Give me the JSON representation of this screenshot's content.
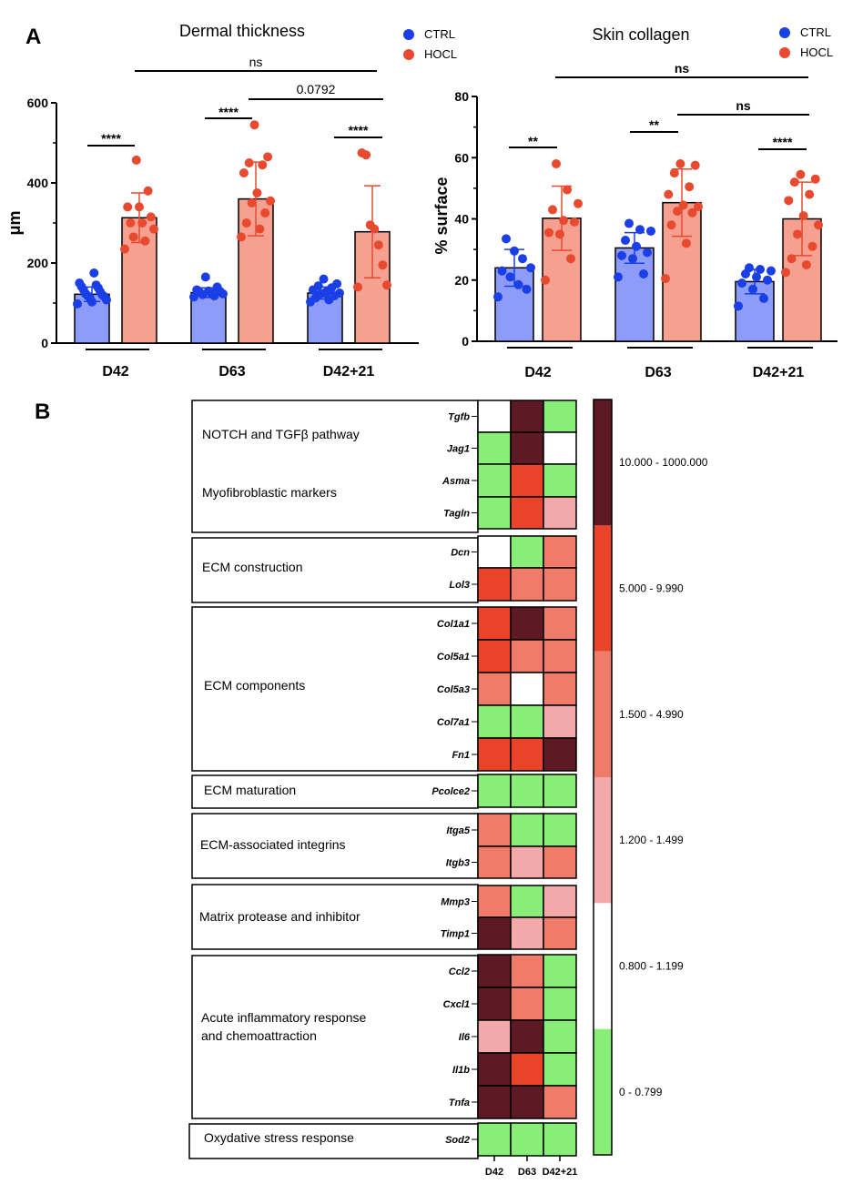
{
  "panels": {
    "a": "A",
    "b": "B"
  },
  "colors": {
    "ctrl_point": "#1a3fe6",
    "ctrl_bar": "#8c9cf8",
    "hocl_point": "#e84a30",
    "hocl_bar": "#f5a090"
  },
  "chart_data": [
    {
      "type": "bar",
      "title": "Dermal thickness",
      "ylabel": "μm",
      "ylim": [
        0,
        600
      ],
      "yticks": [
        0,
        200,
        400,
        600
      ],
      "categories": [
        "D42",
        "D63",
        "D42+21"
      ],
      "legend_position": "top-right",
      "series": [
        {
          "name": "CTRL",
          "values": [
            122,
            126,
            125
          ],
          "error": [
            18,
            12,
            15
          ],
          "points": [
            [
              98,
              103,
              108,
              113,
              116,
              118,
              120,
              123,
              128,
              133,
              138,
              141,
              145,
              150,
              175
            ],
            [
              115,
              118,
              121,
              123,
              125,
              127,
              129,
              130,
              133,
              140,
              165
            ],
            [
              103,
              108,
              113,
              118,
              123,
              125,
              128,
              133,
              138,
              143,
              148,
              160
            ]
          ]
        },
        {
          "name": "HOCL",
          "values": [
            313,
            360,
            278
          ],
          "error": [
            62,
            92,
            115
          ],
          "points": [
            [
              235,
              255,
              265,
              285,
              300,
              300,
              315,
              340,
              340,
              380,
              457
            ],
            [
              265,
              285,
              300,
              325,
              350,
              355,
              375,
              425,
              445,
              450,
              465,
              545
            ],
            [
              140,
              145,
              195,
              245,
              285,
              295,
              470,
              475
            ]
          ]
        }
      ],
      "annotations": [
        {
          "text": "****",
          "between": [
            "D42 CTRL",
            "D42 HOCL"
          ]
        },
        {
          "text": "****",
          "between": [
            "D63 CTRL",
            "D63 HOCL"
          ]
        },
        {
          "text": "****",
          "between": [
            "D42+21 CTRL",
            "D42+21 HOCL"
          ]
        },
        {
          "text": "ns",
          "between": [
            "D42 HOCL",
            "D42+21 HOCL"
          ]
        },
        {
          "text": "0.0792",
          "between": [
            "D63 HOCL",
            "D42+21 HOCL"
          ]
        }
      ]
    },
    {
      "type": "bar",
      "title": "Skin collagen",
      "ylabel": "% surface",
      "ylim": [
        0,
        80
      ],
      "yticks": [
        0,
        20,
        40,
        60,
        80
      ],
      "categories": [
        "D42",
        "D63",
        "D42+21"
      ],
      "legend_position": "top-right",
      "series": [
        {
          "name": "CTRL",
          "values": [
            24,
            30.5,
            19.5
          ],
          "error": [
            6,
            5,
            4
          ],
          "points": [
            [
              14.5,
              17,
              18.5,
              21,
              23,
              24,
              27,
              29.5,
              33.5
            ],
            [
              21,
              22,
              27,
              28,
              29,
              31,
              33,
              36,
              36.5,
              38.5
            ],
            [
              11.5,
              14,
              17,
              19,
              20,
              21,
              22,
              23,
              23.5,
              24
            ]
          ]
        },
        {
          "name": "HOCL",
          "values": [
            40.2,
            45.3,
            40
          ],
          "error": [
            10.5,
            11,
            12
          ],
          "points": [
            [
              20,
              27,
              35,
              35.5,
              39,
              39.5,
              43,
              45,
              49.5,
              58
            ],
            [
              20.5,
              32,
              38,
              42,
              42.5,
              44,
              44.5,
              48,
              50.5,
              55,
              57.5,
              58
            ],
            [
              22.5,
              25,
              27,
              31,
              35,
              38,
              41,
              46,
              48,
              52,
              53,
              54.5
            ]
          ]
        }
      ],
      "annotations": [
        {
          "text": "**",
          "between": [
            "D42 CTRL",
            "D42 HOCL"
          ]
        },
        {
          "text": "**",
          "between": [
            "D63 CTRL",
            "D63 HOCL"
          ]
        },
        {
          "text": "****",
          "between": [
            "D42+21 CTRL",
            "D42+21 HOCL"
          ]
        },
        {
          "text": "ns",
          "between": [
            "D42 HOCL",
            "D42+21 HOCL"
          ]
        },
        {
          "text": "ns",
          "between": [
            "D63 HOCL",
            "D42+21 HOCL"
          ]
        }
      ]
    },
    {
      "type": "heatmap",
      "columns": [
        "D42",
        "D63",
        "D42+21"
      ],
      "scale": [
        {
          "label": "0 - 0.799",
          "color": "#88ee78"
        },
        {
          "label": "0.800 - 1.199",
          "color": "#ffffff"
        },
        {
          "label": "1.200 - 1.499",
          "color": "#f2a9a9"
        },
        {
          "label": "1.500 - 4.990",
          "color": "#ef7b68"
        },
        {
          "label": "5.000 - 9.990",
          "color": "#e9442a"
        },
        {
          "label": "10.000 - 1000.000",
          "color": "#5e1a24"
        }
      ],
      "groups": [
        {
          "label": "NOTCH and TGFβ pathway",
          "genes": [
            "Tgfb",
            "Jag1"
          ]
        },
        {
          "label": "Myofibroblastic markers",
          "genes": [
            "Asma",
            "Tagln"
          ]
        },
        {
          "label": "ECM construction",
          "genes": [
            "Dcn",
            "Lol3"
          ]
        },
        {
          "label": "ECM components",
          "genes": [
            "Col1a1",
            "Col5a1",
            "Col5a3",
            "Col7a1",
            "Fn1"
          ]
        },
        {
          "label": "ECM maturation",
          "genes": [
            "Pcolce2"
          ]
        },
        {
          "label": "ECM-associated integrins",
          "genes": [
            "Itga5",
            "Itgb3"
          ]
        },
        {
          "label": "Matrix protease and inhibitor",
          "genes": [
            "Mmp3",
            "Timp1"
          ]
        },
        {
          "label": "Acute inflammatory response and chemoattraction",
          "genes": [
            "Ccl2",
            "Cxcl1",
            "Il6",
            "Il1b",
            "Tnfa"
          ]
        },
        {
          "label": "Oxydative stress response",
          "genes": [
            "Sod2"
          ]
        }
      ],
      "rows": [
        {
          "gene": "Tgfb",
          "levels": [
            1,
            5,
            0
          ]
        },
        {
          "gene": "Jag1",
          "levels": [
            0,
            5,
            1
          ]
        },
        {
          "gene": "Asma",
          "levels": [
            0,
            4,
            0
          ]
        },
        {
          "gene": "Tagln",
          "levels": [
            0,
            4,
            2
          ]
        },
        {
          "gene": "Dcn",
          "levels": [
            1,
            0,
            3
          ]
        },
        {
          "gene": "Lol3",
          "levels": [
            4,
            3,
            3
          ]
        },
        {
          "gene": "Col1a1",
          "levels": [
            4,
            5,
            3
          ]
        },
        {
          "gene": "Col5a1",
          "levels": [
            4,
            3,
            3
          ]
        },
        {
          "gene": "Col5a3",
          "levels": [
            3,
            1,
            3
          ]
        },
        {
          "gene": "Col7a1",
          "levels": [
            0,
            0,
            2
          ]
        },
        {
          "gene": "Fn1",
          "levels": [
            4,
            4,
            5
          ]
        },
        {
          "gene": "Pcolce2",
          "levels": [
            0,
            0,
            0
          ]
        },
        {
          "gene": "Itga5",
          "levels": [
            3,
            0,
            0
          ]
        },
        {
          "gene": "Itgb3",
          "levels": [
            3,
            2,
            3
          ]
        },
        {
          "gene": "Mmp3",
          "levels": [
            3,
            0,
            2
          ]
        },
        {
          "gene": "Timp1",
          "levels": [
            5,
            2,
            3
          ]
        },
        {
          "gene": "Ccl2",
          "levels": [
            5,
            3,
            0
          ]
        },
        {
          "gene": "Cxcl1",
          "levels": [
            5,
            3,
            0
          ]
        },
        {
          "gene": "Il6",
          "levels": [
            2,
            5,
            0
          ]
        },
        {
          "gene": "Il1b",
          "levels": [
            5,
            4,
            0
          ]
        },
        {
          "gene": "Tnfa",
          "levels": [
            5,
            5,
            3
          ]
        },
        {
          "gene": "Sod2",
          "levels": [
            0,
            0,
            0
          ]
        }
      ]
    }
  ]
}
